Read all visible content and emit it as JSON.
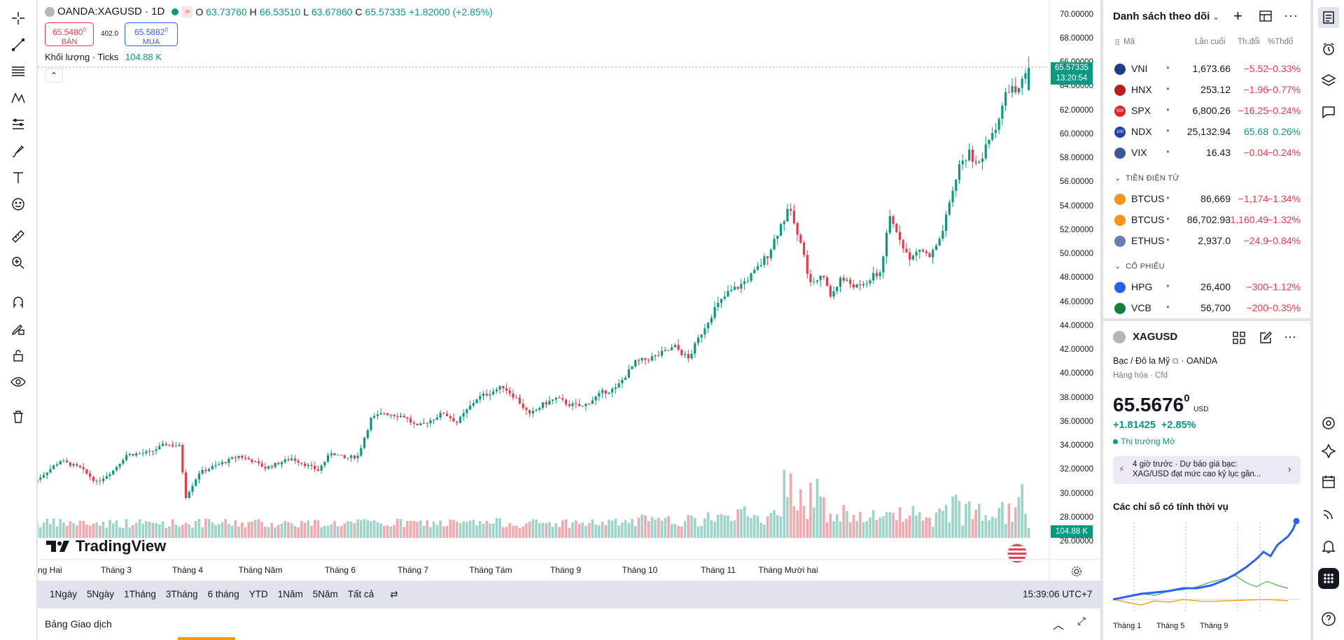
{
  "chart": {
    "symbol_title": "OANDA:XAGUSD · 1D",
    "legend": {
      "o_label": "O",
      "o": "63.73760",
      "h_label": "H",
      "h": "66.53510",
      "l_label": "L",
      "l": "63.67860",
      "c_label": "C",
      "c": "65.57335",
      "change": "+1.82000 (+2.85%)"
    },
    "sell": {
      "price": "65.5480",
      "sup": "0",
      "label": "BÁN"
    },
    "spread": "402.0",
    "buy": {
      "price": "65.5882",
      "sup": "0",
      "label": "MUA"
    },
    "volume_label": "Khối lượng · Ticks",
    "volume_value": "104.88 K",
    "price_badge": "65.57335",
    "time_badge": "13:20:54",
    "volume_badge": "104.88 K",
    "watermark": "TradingView",
    "y_axis": [
      "70.00000",
      "68.00000",
      "66.00000",
      "64.00000",
      "62.00000",
      "60.00000",
      "58.00000",
      "56.00000",
      "54.00000",
      "52.00000",
      "50.00000",
      "48.00000",
      "46.00000",
      "44.00000",
      "42.00000",
      "40.00000",
      "38.00000",
      "36.00000",
      "34.00000",
      "32.00000",
      "30.00000",
      "28.00000",
      "26.00000"
    ],
    "x_axis": [
      "ng Hai",
      "Tháng 3",
      "Tháng 4",
      "Tháng Năm",
      "Tháng 6",
      "Tháng 7",
      "Tháng Tám",
      "Tháng 9",
      "Tháng 10",
      "Tháng 11",
      "Tháng Mười hai"
    ],
    "ranges": [
      "1Ngày",
      "5Ngày",
      "1Tháng",
      "3Tháng",
      "6 tháng",
      "YTD",
      "1Năm",
      "5Năm",
      "Tất cả"
    ],
    "clock": "15:39:06 UTC+7",
    "up_color": "#089981",
    "down_color": "#f23645"
  },
  "chart_data": {
    "type": "candlestick",
    "title": "OANDA:XAGUSD · 1D",
    "ylim": [
      25,
      71
    ],
    "anchors": [
      [
        0,
        31.0
      ],
      [
        8,
        32.8
      ],
      [
        14,
        32.2
      ],
      [
        19,
        31.0
      ],
      [
        24,
        32.0
      ],
      [
        28,
        33.3
      ],
      [
        35,
        33.5
      ],
      [
        40,
        34.2
      ],
      [
        44,
        34.0
      ],
      [
        46,
        29.8
      ],
      [
        50,
        31.8
      ],
      [
        56,
        32.5
      ],
      [
        62,
        33.2
      ],
      [
        66,
        32.8
      ],
      [
        70,
        32.2
      ],
      [
        74,
        32.6
      ],
      [
        78,
        33.0
      ],
      [
        82,
        32.5
      ],
      [
        86,
        32.0
      ],
      [
        90,
        33.5
      ],
      [
        94,
        33.0
      ],
      [
        98,
        33.2
      ],
      [
        102,
        36.3
      ],
      [
        106,
        36.8
      ],
      [
        112,
        36.5
      ],
      [
        116,
        35.6
      ],
      [
        120,
        36.2
      ],
      [
        124,
        36.8
      ],
      [
        128,
        36.0
      ],
      [
        134,
        38.0
      ],
      [
        138,
        38.5
      ],
      [
        142,
        39.0
      ],
      [
        146,
        38.0
      ],
      [
        150,
        36.6
      ],
      [
        154,
        37.5
      ],
      [
        158,
        38.0
      ],
      [
        162,
        37.5
      ],
      [
        166,
        37.3
      ],
      [
        172,
        38.5
      ],
      [
        176,
        38.8
      ],
      [
        182,
        41.0
      ],
      [
        188,
        41.5
      ],
      [
        194,
        42.3
      ],
      [
        198,
        41.3
      ],
      [
        202,
        43.5
      ],
      [
        206,
        45.5
      ],
      [
        210,
        46.8
      ],
      [
        214,
        47.5
      ],
      [
        218,
        48.5
      ],
      [
        222,
        50.0
      ],
      [
        226,
        52.5
      ],
      [
        229,
        54.0
      ],
      [
        232,
        51.0
      ],
      [
        235,
        47.5
      ],
      [
        238,
        48.5
      ],
      [
        241,
        46.5
      ],
      [
        244,
        48.0
      ],
      [
        247,
        47.6
      ],
      [
        250,
        47.2
      ],
      [
        253,
        48.0
      ],
      [
        256,
        48.5
      ],
      [
        259,
        53.0
      ],
      [
        262,
        51.5
      ],
      [
        265,
        49.5
      ],
      [
        268,
        50.5
      ],
      [
        271,
        49.8
      ],
      [
        274,
        51.0
      ],
      [
        277,
        54.0
      ],
      [
        280,
        57.5
      ],
      [
        283,
        58.5
      ],
      [
        286,
        57.5
      ],
      [
        289,
        59.5
      ],
      [
        292,
        61.5
      ],
      [
        295,
        64.0
      ],
      [
        298,
        63.5
      ],
      [
        301,
        65.6
      ]
    ],
    "n_bars": 302,
    "volume_label": "Khối lượng · Ticks",
    "last_close": 65.57335
  },
  "watchlist": {
    "title": "Danh sách theo dõi",
    "col_symbol": "Mã",
    "col_last": "Lần cuối",
    "col_chg": "Th.đổi",
    "col_chgp": "%Thđổ",
    "section_crypto": "TIỀN ĐIỆN TỬ",
    "section_stocks": "CỔ PHIẾU",
    "rows": [
      {
        "sym": "VNI",
        "last": "1,673.66",
        "chg": "−5.52",
        "pct": "−0.33%",
        "icon": "#1e3a8a",
        "txt": ""
      },
      {
        "sym": "HNX",
        "last": "253.12",
        "chg": "−1.96",
        "pct": "−0.77%",
        "icon": "#b91c1c",
        "txt": ""
      },
      {
        "sym": "SPX",
        "last": "6,800.26",
        "chg": "−16.25",
        "pct": "−0.24%",
        "icon": "#dc2626",
        "txt": "500"
      },
      {
        "sym": "NDX",
        "last": "25,132.94",
        "chg": "65.68",
        "pct": "0.26%",
        "icon": "#1e40af",
        "txt": "100"
      },
      {
        "sym": "VIX",
        "last": "16.43",
        "chg": "−0.04",
        "pct": "−0.24%",
        "icon": "#3b5998",
        "txt": ""
      }
    ],
    "crypto_rows": [
      {
        "sym": "BTCUS",
        "last": "86,669",
        "chg": "−1,174",
        "pct": "−1.34%",
        "icon": "#f7931a"
      },
      {
        "sym": "BTCUS",
        "last": "86,702.93",
        "chg": "−1,160.49",
        "pct": "−1.32%",
        "icon": "#f7931a"
      },
      {
        "sym": "ETHUS",
        "last": "2,937.0",
        "chg": "−24.9",
        "pct": "−0.84%",
        "icon": "#6b7db3"
      }
    ],
    "stock_rows": [
      {
        "sym": "HPG",
        "last": "26,400",
        "chg": "−300",
        "pct": "−1.12%",
        "icon": "#2563eb"
      },
      {
        "sym": "VCB",
        "last": "56,700",
        "chg": "−200",
        "pct": "−0.35%",
        "icon": "#15803d"
      }
    ]
  },
  "details": {
    "symbol": "XAGUSD",
    "desc": "Bạc / Đô la Mỹ",
    "exchange": "OANDA",
    "category": "Hàng hóa",
    "type": "Cfd",
    "price_main": "65.5676",
    "price_sup": "0",
    "currency": "USD",
    "change": "+1.81425",
    "change_pct": "+2.85%",
    "market_status": "Thị trường Mở",
    "news_time": "4 giờ trước",
    "news_text1": "Dự báo giá bạc:",
    "news_text2": "XAG/USD đạt mức cao kỷ lục gần...",
    "seasonal_title": "Các chỉ số có tính thời vụ",
    "seasonal_x": [
      "Tháng 1",
      "Tháng 5",
      "Tháng 9"
    ]
  },
  "bottom": {
    "label": "Bảng Giao dịch"
  }
}
